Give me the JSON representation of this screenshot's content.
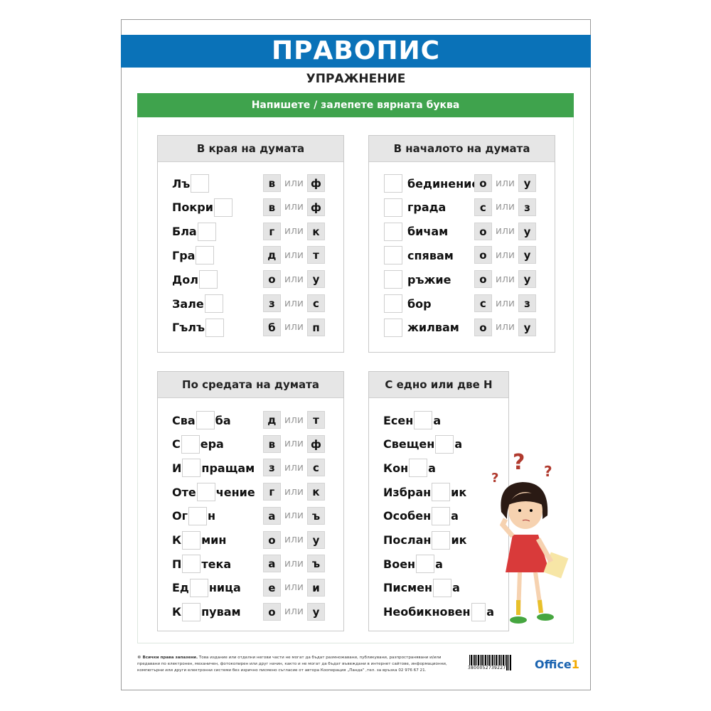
{
  "header": {
    "title": "ПРАВОПИС",
    "subtitle": "УПРАЖНЕНИЕ",
    "instruction": "Напишете / залепете вярната буква"
  },
  "colors": {
    "title_bar": "#0a72b8",
    "instruction_bar": "#3fa34d"
  },
  "or_word": "или",
  "panels": [
    {
      "title": "В края на думата",
      "rows": [
        {
          "pre": "Лъ",
          "post": "",
          "a": "в",
          "b": "ф"
        },
        {
          "pre": "Покри",
          "post": "",
          "a": "в",
          "b": "ф"
        },
        {
          "pre": "Бла",
          "post": "",
          "a": "г",
          "b": "к"
        },
        {
          "pre": "Гра",
          "post": "",
          "a": "д",
          "b": "т"
        },
        {
          "pre": "Дол",
          "post": "",
          "a": "о",
          "b": "у"
        },
        {
          "pre": "Зале",
          "post": "",
          "a": "з",
          "b": "с"
        },
        {
          "pre": "Гълъ",
          "post": "",
          "a": "б",
          "b": "п"
        }
      ]
    },
    {
      "title": "В началото на думата",
      "rows": [
        {
          "pre": "",
          "post": "бединение",
          "a": "о",
          "b": "у"
        },
        {
          "pre": "",
          "post": "града",
          "a": "с",
          "b": "з"
        },
        {
          "pre": "",
          "post": "бичам",
          "a": "о",
          "b": "у"
        },
        {
          "pre": "",
          "post": "спявам",
          "a": "о",
          "b": "у"
        },
        {
          "pre": "",
          "post": "ръжие",
          "a": "о",
          "b": "у"
        },
        {
          "pre": "",
          "post": "бор",
          "a": "с",
          "b": "з"
        },
        {
          "pre": "",
          "post": "жилвам",
          "a": "о",
          "b": "у"
        }
      ]
    },
    {
      "title": "По средата на думата",
      "rows": [
        {
          "pre": "Сва",
          "post": "ба",
          "a": "д",
          "b": "т"
        },
        {
          "pre": "С",
          "post": "ера",
          "a": "в",
          "b": "ф"
        },
        {
          "pre": "И",
          "post": "пращам",
          "a": "з",
          "b": "с"
        },
        {
          "pre": "Оте",
          "post": "чение",
          "a": "г",
          "b": "к"
        },
        {
          "pre": "Ог",
          "post": "н",
          "a": "а",
          "b": "ъ"
        },
        {
          "pre": "К",
          "post": "мин",
          "a": "о",
          "b": "у"
        },
        {
          "pre": "П",
          "post": "тека",
          "a": "а",
          "b": "ъ"
        },
        {
          "pre": "Ед",
          "post": "ница",
          "a": "е",
          "b": "и"
        },
        {
          "pre": "К",
          "post": "пувам",
          "a": "о",
          "b": "у"
        }
      ]
    },
    {
      "title": "С едно или две Н",
      "rows": [
        {
          "pre": "Есен",
          "post": "а"
        },
        {
          "pre": "Свещен",
          "post": "а"
        },
        {
          "pre": "Кон",
          "post": "а"
        },
        {
          "pre": "Избран",
          "post": "ик"
        },
        {
          "pre": "Особен",
          "post": "а"
        },
        {
          "pre": "Послан",
          "post": "ик"
        },
        {
          "pre": "Воен",
          "post": "а"
        },
        {
          "pre": "Писмен",
          "post": "а"
        },
        {
          "pre": "Необикновен",
          "post": "а"
        }
      ]
    }
  ],
  "footer": {
    "copyright_bold": "© Всички права запазени.",
    "text": " Това издание или отделни негови части не могат да бъдат размножавани, публикувани, разпространявани и/или предавани по електронен, механичен, фотокопирен или друг начин, както и не могат да бъдат въвеждани в интернет сайтове, информационни, компютърни или други електронни системи без изрично писмено съгласие от автора Кооперация „Панда\" ,тел. за връзка 02 976 67 21.",
    "barcode": "3800052739227",
    "logo_main": "Office",
    "logo_num": "1"
  }
}
